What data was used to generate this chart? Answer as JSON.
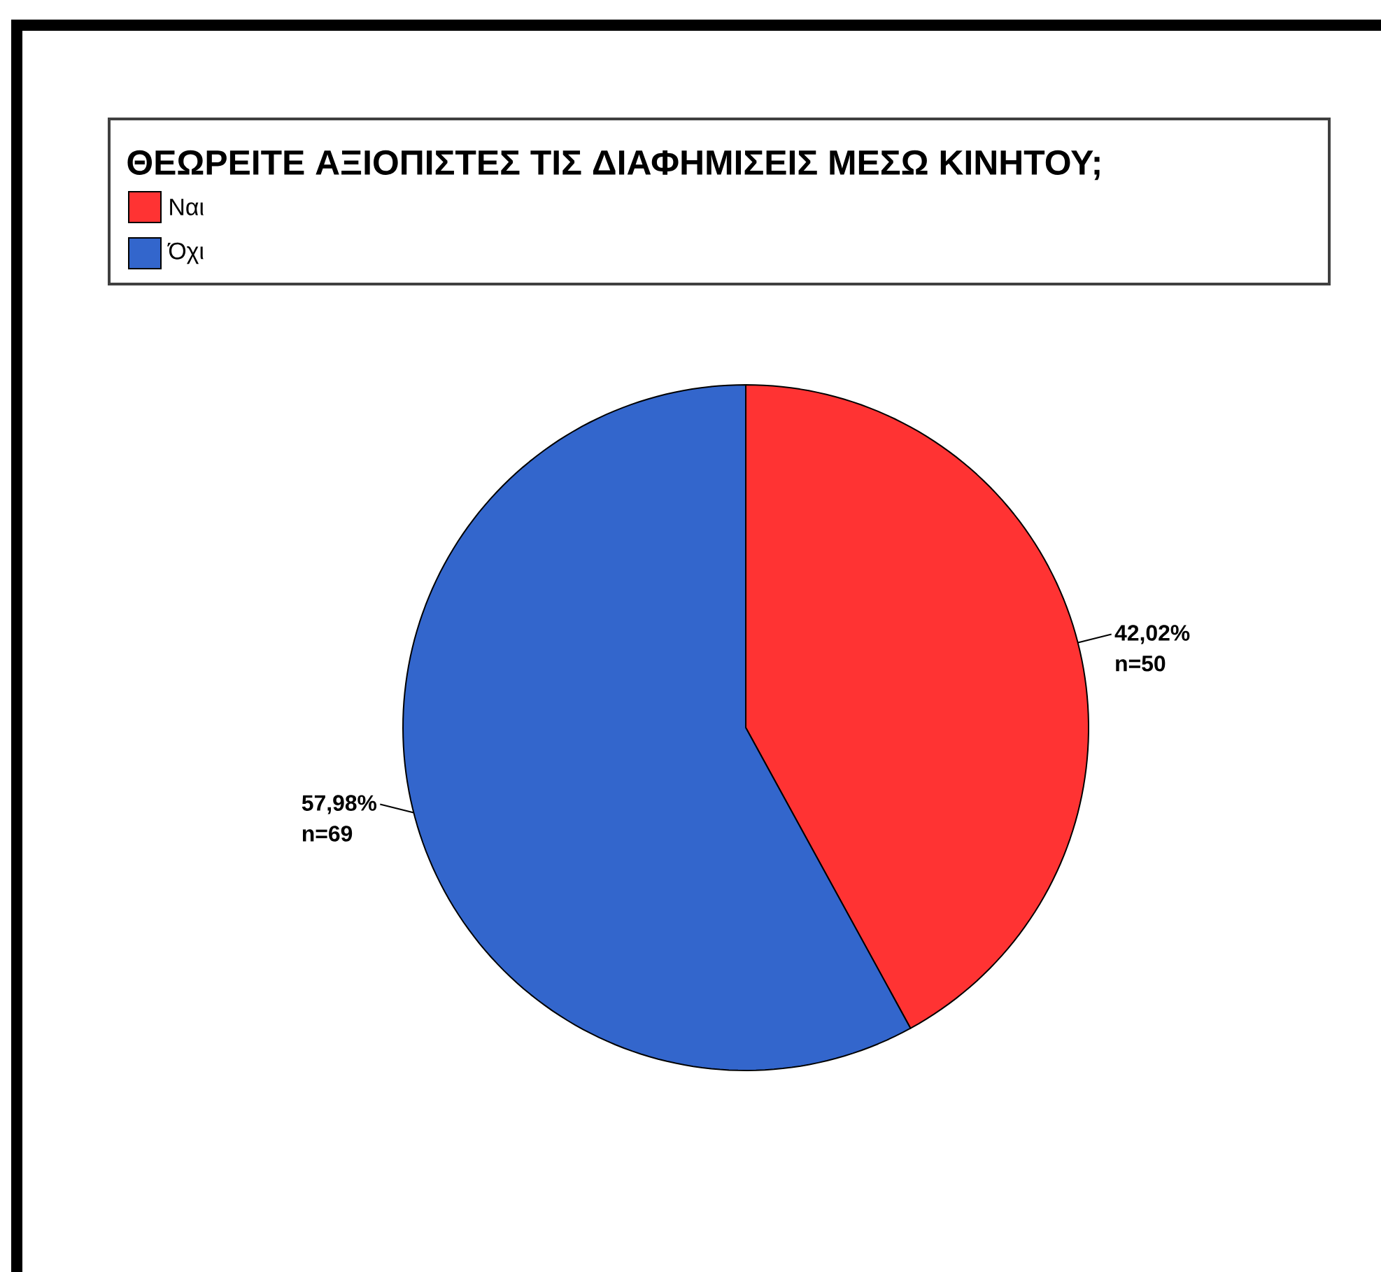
{
  "chart_data": {
    "type": "pie",
    "legend_title": "ΘΕΩΡΕΙΤΕ ΑΞΙΟΠΙΣΤΕΣ ΤΙΣ ΔΙΑΦΗΜΙΣΕΙΣ ΜΕΣΩ ΚΙΝΗΤΟΥ;",
    "categories": [
      "Ναι",
      "Όχι"
    ],
    "values": [
      42.02,
      57.98
    ],
    "colors": [
      "#ff3333",
      "#3366cc"
    ],
    "value_labels": [
      "42,02%",
      "57,98%"
    ],
    "annotations": [
      "n=50",
      "n=69"
    ],
    "legend": "top"
  }
}
